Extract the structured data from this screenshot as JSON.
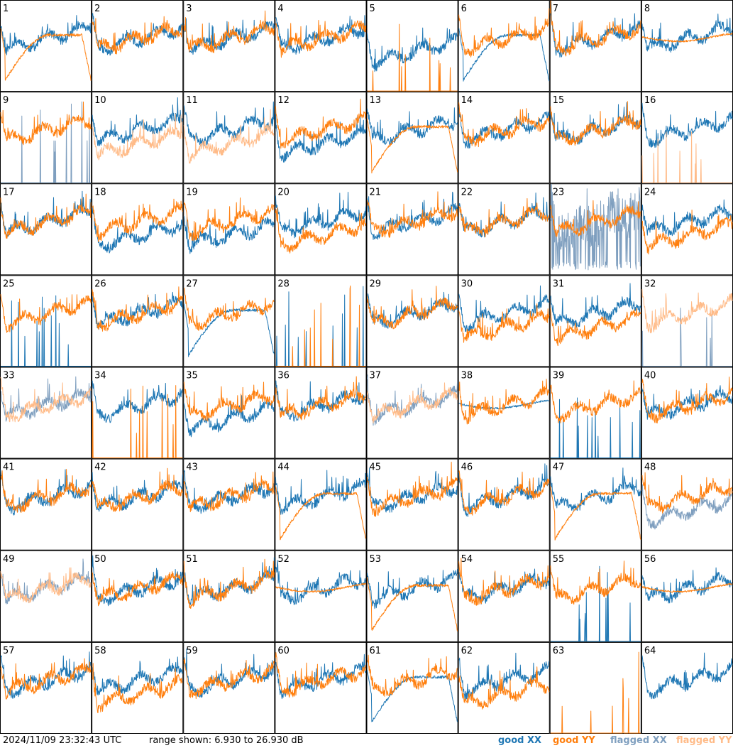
{
  "figure": {
    "timestamp": "2024/11/09 23:32:43 UTC",
    "range_text": "range shown: 6.930 to 26.930 dB",
    "legend": [
      {
        "label": "good XX",
        "color": "#1f77b4"
      },
      {
        "label": "good YY",
        "color": "#ff7f0e"
      },
      {
        "label": "flagged XX",
        "color": "#7f9fbf"
      },
      {
        "label": "flagged YY",
        "color": "#ffbb88"
      }
    ]
  },
  "chart_data": {
    "type": "line",
    "title": "",
    "xlabel": "",
    "ylabel": "",
    "ylim": [
      6.93,
      26.93
    ],
    "grid": false,
    "legend_placement": "bottom-right",
    "colors": {
      "good_xx": "#1f77b4",
      "good_yy": "#ff7f0e",
      "flagged_xx": "#7f9fbf",
      "flagged_yy": "#ffbb88"
    },
    "panels": [
      {
        "id": "1",
        "xx": "good",
        "yy": "good",
        "xx_profile": "normal",
        "yy_profile": "slump"
      },
      {
        "id": "2",
        "xx": "good",
        "yy": "good",
        "xx_profile": "normal",
        "yy_profile": "normal"
      },
      {
        "id": "3",
        "xx": "good",
        "yy": "good",
        "xx_profile": "normal",
        "yy_profile": "normal"
      },
      {
        "id": "4",
        "xx": "good",
        "yy": "good",
        "xx_profile": "normal",
        "yy_profile": "normal"
      },
      {
        "id": "5",
        "xx": "good",
        "yy": "good",
        "xx_profile": "low",
        "yy_profile": "spikes"
      },
      {
        "id": "6",
        "xx": "good",
        "yy": "good",
        "xx_profile": "slump",
        "yy_profile": "normal"
      },
      {
        "id": "7",
        "xx": "good",
        "yy": "good",
        "xx_profile": "normal",
        "yy_profile": "normal"
      },
      {
        "id": "8",
        "xx": "good",
        "yy": "good",
        "xx_profile": "normal",
        "yy_profile": "smooth"
      },
      {
        "id": "9",
        "xx": "flagged",
        "yy": "good",
        "xx_profile": "spikes",
        "yy_profile": "normal"
      },
      {
        "id": "10",
        "xx": "good",
        "yy": "flagged",
        "xx_profile": "normal",
        "yy_profile": "low"
      },
      {
        "id": "11",
        "xx": "good",
        "yy": "flagged",
        "xx_profile": "normal",
        "yy_profile": "low"
      },
      {
        "id": "12",
        "xx": "good",
        "yy": "good",
        "xx_profile": "low",
        "yy_profile": "normal"
      },
      {
        "id": "13",
        "xx": "good",
        "yy": "good",
        "xx_profile": "normal",
        "yy_profile": "slump"
      },
      {
        "id": "14",
        "xx": "good",
        "yy": "good",
        "xx_profile": "normal",
        "yy_profile": "normal"
      },
      {
        "id": "15",
        "xx": "good",
        "yy": "good",
        "xx_profile": "normal",
        "yy_profile": "normal"
      },
      {
        "id": "16",
        "xx": "good",
        "yy": "flagged",
        "xx_profile": "normal",
        "yy_profile": "spikes"
      },
      {
        "id": "17",
        "xx": "good",
        "yy": "good",
        "xx_profile": "normal",
        "yy_profile": "normal"
      },
      {
        "id": "18",
        "xx": "good",
        "yy": "good",
        "xx_profile": "low",
        "yy_profile": "normal"
      },
      {
        "id": "19",
        "xx": "good",
        "yy": "good",
        "xx_profile": "low",
        "yy_profile": "normal"
      },
      {
        "id": "20",
        "xx": "good",
        "yy": "good",
        "xx_profile": "normal",
        "yy_profile": "low"
      },
      {
        "id": "21",
        "xx": "good",
        "yy": "good",
        "xx_profile": "normal",
        "yy_profile": "normal"
      },
      {
        "id": "22",
        "xx": "good",
        "yy": "good",
        "xx_profile": "normal",
        "yy_profile": "normal"
      },
      {
        "id": "23",
        "xx": "flagged",
        "yy": "good",
        "xx_profile": "noisy",
        "yy_profile": "normal"
      },
      {
        "id": "24",
        "xx": "good",
        "yy": "good",
        "xx_profile": "normal",
        "yy_profile": "low"
      },
      {
        "id": "25",
        "xx": "good",
        "yy": "good",
        "xx_profile": "spikes",
        "yy_profile": "normal"
      },
      {
        "id": "26",
        "xx": "good",
        "yy": "good",
        "xx_profile": "normal",
        "yy_profile": "normal"
      },
      {
        "id": "27",
        "xx": "good",
        "yy": "good",
        "xx_profile": "slump",
        "yy_profile": "normal"
      },
      {
        "id": "28",
        "xx": "good",
        "yy": "good",
        "xx_profile": "spikes",
        "yy_profile": "spikes"
      },
      {
        "id": "29",
        "xx": "good",
        "yy": "good",
        "xx_profile": "normal",
        "yy_profile": "normal"
      },
      {
        "id": "30",
        "xx": "good",
        "yy": "good",
        "xx_profile": "normal",
        "yy_profile": "low"
      },
      {
        "id": "31",
        "xx": "good",
        "yy": "good",
        "xx_profile": "normal",
        "yy_profile": "low"
      },
      {
        "id": "32",
        "xx": "flagged",
        "yy": "flagged",
        "xx_profile": "spikes",
        "yy_profile": "normal"
      },
      {
        "id": "33",
        "xx": "flagged",
        "yy": "flagged",
        "xx_profile": "normal",
        "yy_profile": "normal"
      },
      {
        "id": "34",
        "xx": "good",
        "yy": "good",
        "xx_profile": "normal",
        "yy_profile": "spikes"
      },
      {
        "id": "35",
        "xx": "good",
        "yy": "good",
        "xx_profile": "low",
        "yy_profile": "normal"
      },
      {
        "id": "36",
        "xx": "good",
        "yy": "good",
        "xx_profile": "normal",
        "yy_profile": "normal"
      },
      {
        "id": "37",
        "xx": "flagged",
        "yy": "flagged",
        "xx_profile": "normal",
        "yy_profile": "normal"
      },
      {
        "id": "38",
        "xx": "good",
        "yy": "good",
        "xx_profile": "smooth",
        "yy_profile": "normal"
      },
      {
        "id": "39",
        "xx": "good",
        "yy": "good",
        "xx_profile": "spikes",
        "yy_profile": "normal"
      },
      {
        "id": "40",
        "xx": "good",
        "yy": "good",
        "xx_profile": "normal",
        "yy_profile": "normal"
      },
      {
        "id": "41",
        "xx": "good",
        "yy": "good",
        "xx_profile": "normal",
        "yy_profile": "normal"
      },
      {
        "id": "42",
        "xx": "good",
        "yy": "good",
        "xx_profile": "normal",
        "yy_profile": "normal"
      },
      {
        "id": "43",
        "xx": "good",
        "yy": "good",
        "xx_profile": "normal",
        "yy_profile": "normal"
      },
      {
        "id": "44",
        "xx": "good",
        "yy": "good",
        "xx_profile": "normal",
        "yy_profile": "slump"
      },
      {
        "id": "45",
        "xx": "good",
        "yy": "good",
        "xx_profile": "normal",
        "yy_profile": "normal"
      },
      {
        "id": "46",
        "xx": "good",
        "yy": "good",
        "xx_profile": "normal",
        "yy_profile": "normal"
      },
      {
        "id": "47",
        "xx": "good",
        "yy": "good",
        "xx_profile": "normal",
        "yy_profile": "slump"
      },
      {
        "id": "48",
        "xx": "flagged",
        "yy": "good",
        "xx_profile": "low",
        "yy_profile": "normal"
      },
      {
        "id": "49",
        "xx": "flagged",
        "yy": "flagged",
        "xx_profile": "normal",
        "yy_profile": "normal"
      },
      {
        "id": "50",
        "xx": "good",
        "yy": "good",
        "xx_profile": "normal",
        "yy_profile": "normal"
      },
      {
        "id": "51",
        "xx": "good",
        "yy": "good",
        "xx_profile": "normal",
        "yy_profile": "normal"
      },
      {
        "id": "52",
        "xx": "good",
        "yy": "good",
        "xx_profile": "normal",
        "yy_profile": "smooth"
      },
      {
        "id": "53",
        "xx": "good",
        "yy": "good",
        "xx_profile": "normal",
        "yy_profile": "slump"
      },
      {
        "id": "54",
        "xx": "good",
        "yy": "good",
        "xx_profile": "normal",
        "yy_profile": "normal"
      },
      {
        "id": "55",
        "xx": "good",
        "yy": "good",
        "xx_profile": "spikes",
        "yy_profile": "normal"
      },
      {
        "id": "56",
        "xx": "good",
        "yy": "good",
        "xx_profile": "normal",
        "yy_profile": "smooth"
      },
      {
        "id": "57",
        "xx": "good",
        "yy": "good",
        "xx_profile": "normal",
        "yy_profile": "normal"
      },
      {
        "id": "58",
        "xx": "good",
        "yy": "good",
        "xx_profile": "normal",
        "yy_profile": "low"
      },
      {
        "id": "59",
        "xx": "good",
        "yy": "good",
        "xx_profile": "normal",
        "yy_profile": "normal"
      },
      {
        "id": "60",
        "xx": "good",
        "yy": "good",
        "xx_profile": "normal",
        "yy_profile": "normal"
      },
      {
        "id": "61",
        "xx": "good",
        "yy": "good",
        "xx_profile": "slump",
        "yy_profile": "normal"
      },
      {
        "id": "62",
        "xx": "good",
        "yy": "good",
        "xx_profile": "normal",
        "yy_profile": "low"
      },
      {
        "id": "63",
        "xx": "good",
        "yy": "good",
        "xx_profile": "none",
        "yy_profile": "spikes"
      },
      {
        "id": "64",
        "xx": "good",
        "yy": "good",
        "xx_profile": "normal",
        "yy_profile": "none"
      }
    ]
  }
}
